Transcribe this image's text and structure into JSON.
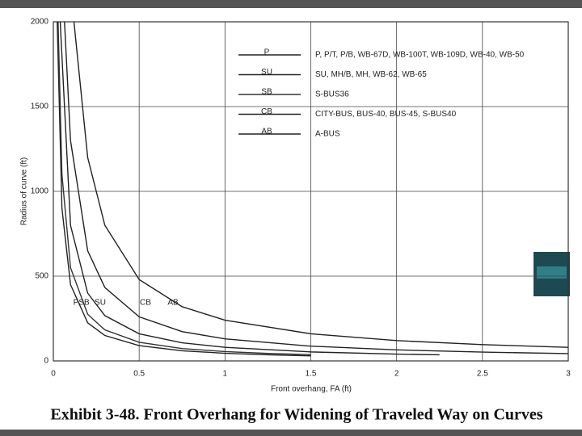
{
  "chart_data": {
    "type": "line",
    "title": "Exhibit 3-48.  Front Overhang for Widening of Traveled Way on Curves",
    "x_label": "Front overhang, FA (ft)",
    "y_label": "Radius of curve (ft)",
    "xlim": [
      0,
      3
    ],
    "xticks": [
      0,
      0.5,
      1,
      1.5,
      2,
      2.5,
      3
    ],
    "ylim": [
      0,
      2000
    ],
    "yticks": [
      0,
      500,
      1000,
      1500,
      2000
    ],
    "grid": true,
    "series": [
      {
        "name": "P",
        "description": "P, P/T, P/B, WB-67D, WB-100T, WB-109D, WB-40, WB-50",
        "color": "#222",
        "x": [
          0.0225,
          0.05,
          0.1,
          0.2,
          0.3,
          0.5,
          0.75,
          1,
          1.25,
          1.5
        ],
        "values": [
          2000,
          900,
          450,
          225,
          150,
          90,
          60,
          45,
          36,
          30
        ]
      },
      {
        "name": "SU",
        "description": "SU, MH/B, MH, WB-62, WB-65",
        "color": "#222",
        "x": [
          0.04,
          0.1,
          0.2,
          0.3,
          0.5,
          0.75,
          1,
          1.5,
          2,
          2.25
        ],
        "values": [
          2000,
          800,
          400,
          267,
          160,
          107,
          80,
          53,
          40,
          36
        ]
      },
      {
        "name": "SB",
        "description": "S-BUS36",
        "color": "#333",
        "x": [
          0.0275,
          0.05,
          0.1,
          0.2,
          0.3,
          0.5,
          0.75,
          1,
          1.25,
          1.5
        ],
        "values": [
          2000,
          1100,
          550,
          275,
          183,
          110,
          73,
          55,
          44,
          37
        ]
      },
      {
        "name": "CB",
        "description": "CITY-BUS, BUS-40, BUS-45, S-BUS40",
        "color": "#222",
        "x": [
          0.065,
          0.1,
          0.2,
          0.3,
          0.5,
          0.75,
          1,
          1.5,
          2,
          2.5,
          3
        ],
        "values": [
          2000,
          1300,
          650,
          433,
          260,
          173,
          130,
          87,
          65,
          52,
          43
        ]
      },
      {
        "name": "AB",
        "description": "A-BUS",
        "color": "#222",
        "x": [
          0.12,
          0.2,
          0.3,
          0.5,
          0.75,
          1,
          1.5,
          2,
          2.5,
          3
        ],
        "values": [
          2000,
          1200,
          800,
          480,
          320,
          240,
          160,
          120,
          96,
          80
        ]
      }
    ]
  }
}
